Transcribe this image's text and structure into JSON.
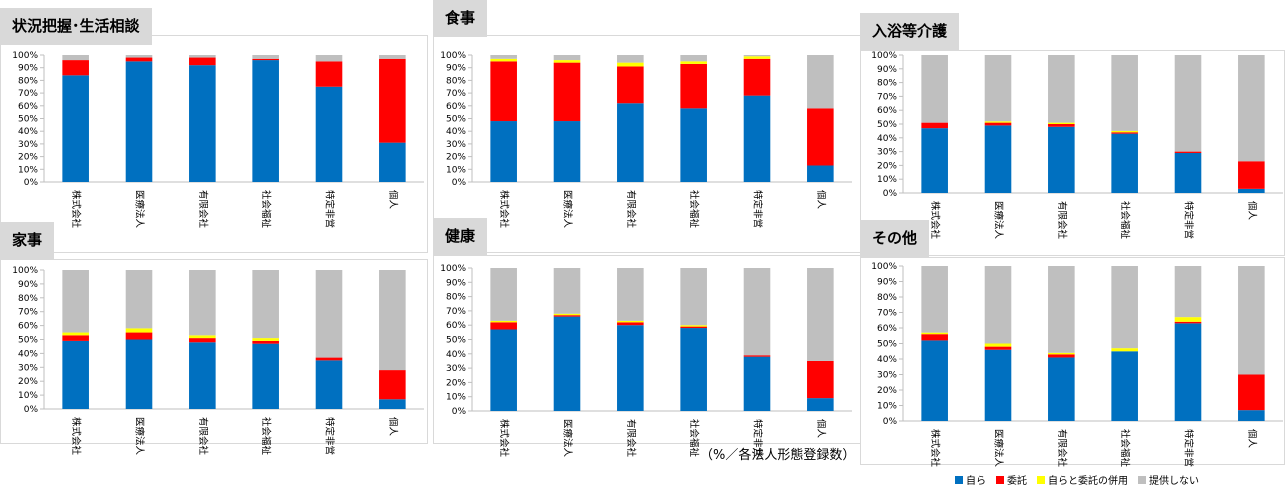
{
  "colors": {
    "self": "#0070c0",
    "outsourced": "#ff0000",
    "both": "#ffff00",
    "none": "#bfbfbf",
    "title_bg": "#d9d9d9",
    "axis": "#d9d9d9",
    "frame": "#d9d9d9"
  },
  "y_ticks": [
    "0%",
    "10%",
    "20%",
    "30%",
    "40%",
    "50%",
    "60%",
    "70%",
    "80%",
    "90%",
    "100%"
  ],
  "note": "（%／各法人形態登録数）",
  "legend": [
    {
      "key": "self",
      "label": "自ら"
    },
    {
      "key": "outsourced",
      "label": "委託"
    },
    {
      "key": "both",
      "label": "自らと委託の併用"
    },
    {
      "key": "none",
      "label": "提供しない"
    }
  ],
  "chart_data": [
    {
      "type": "bar",
      "stacked": true,
      "title": "状況把握･生活相談",
      "categories": [
        "株式会社",
        "医療法人",
        "有限会社",
        "社会福祉",
        "特定非営",
        "個人"
      ],
      "ylim": [
        0,
        100
      ],
      "series": [
        {
          "name": "自ら",
          "key": "self",
          "values": [
            84,
            95,
            92,
            96,
            75,
            31
          ]
        },
        {
          "name": "委託",
          "key": "outsourced",
          "values": [
            12,
            3,
            6,
            1,
            20,
            66
          ]
        },
        {
          "name": "自らと委託の併用",
          "key": "both",
          "values": [
            0,
            0,
            0,
            0,
            0,
            0
          ]
        },
        {
          "name": "提供しない",
          "key": "none",
          "values": [
            4,
            2,
            2,
            3,
            5,
            3
          ]
        }
      ]
    },
    {
      "type": "bar",
      "stacked": true,
      "title": "食事",
      "categories": [
        "株式会社",
        "医療法人",
        "有限会社",
        "社会福祉",
        "特定非営",
        "個人"
      ],
      "ylim": [
        0,
        100
      ],
      "series": [
        {
          "name": "自ら",
          "key": "self",
          "values": [
            48,
            48,
            62,
            58,
            68,
            13
          ]
        },
        {
          "name": "委託",
          "key": "outsourced",
          "values": [
            47,
            46,
            29,
            35,
            29,
            45
          ]
        },
        {
          "name": "自らと委託の併用",
          "key": "both",
          "values": [
            2,
            2,
            3,
            2,
            2,
            0
          ]
        },
        {
          "name": "提供しない",
          "key": "none",
          "values": [
            3,
            4,
            6,
            5,
            1,
            42
          ]
        }
      ]
    },
    {
      "type": "bar",
      "stacked": true,
      "title": "入浴等介護",
      "categories": [
        "株式会社",
        "医療法人",
        "有限会社",
        "社会福祉",
        "特定非営",
        "個人"
      ],
      "ylim": [
        0,
        100
      ],
      "series": [
        {
          "name": "自ら",
          "key": "self",
          "values": [
            47,
            49,
            48,
            43,
            29,
            3
          ]
        },
        {
          "name": "委託",
          "key": "outsourced",
          "values": [
            4,
            2,
            2,
            1,
            1,
            20
          ]
        },
        {
          "name": "自らと委託の併用",
          "key": "both",
          "values": [
            0,
            1,
            1,
            1,
            0,
            0
          ]
        },
        {
          "name": "提供しない",
          "key": "none",
          "values": [
            49,
            48,
            49,
            55,
            70,
            77
          ]
        }
      ]
    },
    {
      "type": "bar",
      "stacked": true,
      "title": "家事",
      "categories": [
        "株式会社",
        "医療法人",
        "有限会社",
        "社会福祉",
        "特定非営",
        "個人"
      ],
      "ylim": [
        0,
        100
      ],
      "series": [
        {
          "name": "自ら",
          "key": "self",
          "values": [
            49,
            50,
            48,
            47,
            35,
            7
          ]
        },
        {
          "name": "委託",
          "key": "outsourced",
          "values": [
            4,
            5,
            3,
            2,
            2,
            21
          ]
        },
        {
          "name": "自らと委託の併用",
          "key": "both",
          "values": [
            2,
            3,
            2,
            2,
            0,
            0
          ]
        },
        {
          "name": "提供しない",
          "key": "none",
          "values": [
            45,
            42,
            47,
            49,
            63,
            72
          ]
        }
      ]
    },
    {
      "type": "bar",
      "stacked": true,
      "title": "健康",
      "categories": [
        "株式会社",
        "医療法人",
        "有限会社",
        "社会福祉",
        "特定非営",
        "個人"
      ],
      "ylim": [
        0,
        100
      ],
      "series": [
        {
          "name": "自ら",
          "key": "self",
          "values": [
            57,
            66,
            60,
            58,
            38,
            9
          ]
        },
        {
          "name": "委託",
          "key": "outsourced",
          "values": [
            5,
            1,
            2,
            1,
            1,
            26
          ]
        },
        {
          "name": "自らと委託の併用",
          "key": "both",
          "values": [
            1,
            1,
            1,
            1,
            0,
            0
          ]
        },
        {
          "name": "提供しない",
          "key": "none",
          "values": [
            37,
            32,
            37,
            40,
            61,
            65
          ]
        }
      ]
    },
    {
      "type": "bar",
      "stacked": true,
      "title": "その他",
      "categories": [
        "株式会社",
        "医療法人",
        "有限会社",
        "社会福祉",
        "特定非営",
        "個人"
      ],
      "ylim": [
        0,
        100
      ],
      "series": [
        {
          "name": "自ら",
          "key": "self",
          "values": [
            52,
            46,
            41,
            45,
            63,
            7
          ]
        },
        {
          "name": "委託",
          "key": "outsourced",
          "values": [
            4,
            2,
            2,
            0,
            1,
            23
          ]
        },
        {
          "name": "自らと委託の併用",
          "key": "both",
          "values": [
            1,
            2,
            1,
            2,
            3,
            0
          ]
        },
        {
          "name": "提供しない",
          "key": "none",
          "values": [
            43,
            50,
            56,
            53,
            33,
            70
          ]
        }
      ]
    }
  ]
}
